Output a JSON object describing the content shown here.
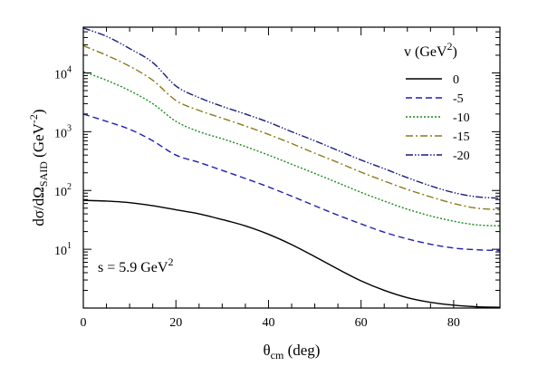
{
  "chart_data": {
    "type": "line",
    "title": "",
    "xlabel": "θcm (deg)",
    "xlabel_main": "θ",
    "xlabel_sub": "cm",
    "xlabel_rest": " (deg)",
    "ylabel": "dσ/dΩSAID (GeV-2)",
    "ylabel_main": "dσ/dΩ",
    "ylabel_sub": "SAID",
    "ylabel_rest1": " (GeV",
    "ylabel_sup": "-2",
    "ylabel_rest2": ")",
    "xlim": [
      0,
      90
    ],
    "ylim": [
      1,
      60000
    ],
    "yscale": "log",
    "grid": false,
    "x_ticks": [
      "0",
      "20",
      "40",
      "60",
      "80"
    ],
    "x_tick_values": [
      0,
      20,
      40,
      60,
      80
    ],
    "y_ticks": [
      {
        "base": "10",
        "exp": "1",
        "value": 10
      },
      {
        "base": "10",
        "exp": "2",
        "value": 100
      },
      {
        "base": "10",
        "exp": "3",
        "value": 1000
      },
      {
        "base": "10",
        "exp": "4",
        "value": 10000
      }
    ],
    "legend": {
      "title_main": "v (GeV",
      "title_sup": "2",
      "title_end": ")",
      "position": "top-right"
    },
    "annotation": {
      "text_main": "s = 5.9 GeV",
      "text_sup": "2",
      "position": "bottom-left"
    },
    "x": [
      0,
      5,
      10,
      15,
      20,
      25,
      30,
      35,
      40,
      45,
      50,
      55,
      60,
      65,
      70,
      75,
      80,
      85,
      90
    ],
    "series": [
      {
        "name": "0",
        "color": "#000000",
        "dash": "solid",
        "values": [
          68,
          66,
          62,
          55,
          47,
          40,
          32,
          25,
          18,
          12,
          7.5,
          4.6,
          2.9,
          2.0,
          1.5,
          1.25,
          1.12,
          1.05,
          1.03
        ]
      },
      {
        "name": "-5",
        "color": "#1e1eb4",
        "dash": "dashed",
        "values": [
          2000,
          1500,
          1100,
          700,
          400,
          300,
          220,
          160,
          115,
          80,
          55,
          38,
          27,
          19.5,
          15,
          12.2,
          10.5,
          9.8,
          9.5
        ]
      },
      {
        "name": "-10",
        "color": "#1a8a1a",
        "dash": "dotted",
        "values": [
          10500,
          7500,
          5000,
          3000,
          1500,
          1000,
          760,
          560,
          400,
          280,
          195,
          135,
          93,
          66,
          48,
          37,
          30,
          26,
          25
        ]
      },
      {
        "name": "-15",
        "color": "#8a7a1a",
        "dash": "dashdot",
        "values": [
          29000,
          20000,
          13000,
          7500,
          3400,
          2300,
          1700,
          1250,
          900,
          630,
          430,
          300,
          205,
          145,
          104,
          78,
          60,
          50,
          47
        ]
      },
      {
        "name": "-20",
        "color": "#1a1a7a",
        "dash": "dashdotdot",
        "values": [
          58000,
          42000,
          26000,
          15000,
          6000,
          3800,
          2700,
          2000,
          1450,
          1000,
          700,
          480,
          330,
          235,
          165,
          120,
          92,
          78,
          74
        ]
      }
    ]
  }
}
